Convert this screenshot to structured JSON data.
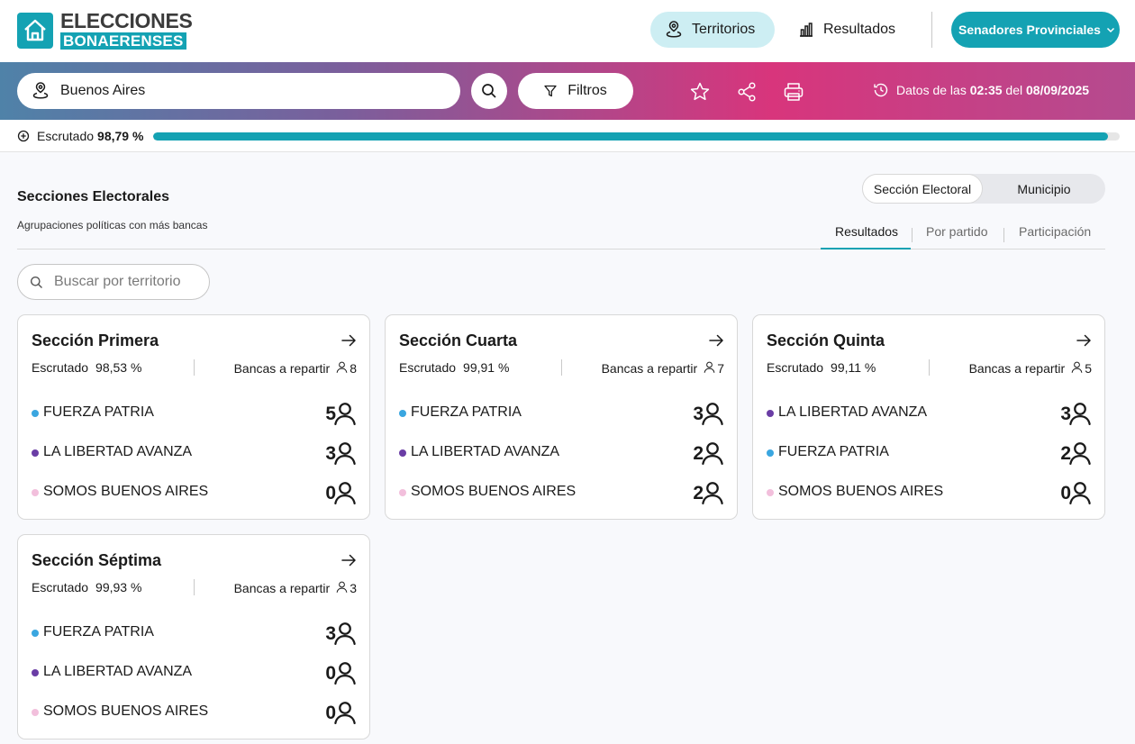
{
  "brand": {
    "line1": "ELECCIONES",
    "line2": "BONAERENSES",
    "color": "#14a2b3"
  },
  "nav": {
    "territorios": "Territorios",
    "resultados": "Resultados",
    "category": "Senadores Provinciales"
  },
  "toolbar": {
    "location": "Buenos Aires",
    "filtros": "Filtros",
    "datos_prefix": "Datos de las",
    "datos_time": "02:35",
    "datos_mid": "del",
    "datos_date": "08/09/2025"
  },
  "progress": {
    "label": "Escrutado",
    "value_text": "98,79 %",
    "fraction": 0.9879
  },
  "section": {
    "title": "Secciones Electorales",
    "subtitle": "Agrupaciones políticas con más bancas",
    "toggle": [
      "Sección Electoral",
      "Municipio"
    ],
    "tabs": [
      "Resultados",
      "Por partido",
      "Participación"
    ],
    "search_placeholder": "Buscar por territorio"
  },
  "party_colors": {
    "FUERZA PATRIA": "#3aa6e0",
    "LA LIBERTAD AVANZA": "#6a3da5",
    "SOMOS BUENOS AIRES": "#f2bfdc"
  },
  "cards": [
    {
      "title": "Sección Primera",
      "esc_label": "Escrutado",
      "esc_value": "98,53 %",
      "bancas_label": "Bancas a repartir",
      "bancas": "8",
      "parties": [
        {
          "name": "FUERZA PATRIA",
          "seats": "5"
        },
        {
          "name": "LA LIBERTAD AVANZA",
          "seats": "3"
        },
        {
          "name": "SOMOS BUENOS AIRES",
          "seats": "0"
        }
      ]
    },
    {
      "title": "Sección Cuarta",
      "esc_label": "Escrutado",
      "esc_value": "99,91 %",
      "bancas_label": "Bancas a repartir",
      "bancas": "7",
      "parties": [
        {
          "name": "FUERZA PATRIA",
          "seats": "3"
        },
        {
          "name": "LA LIBERTAD AVANZA",
          "seats": "2"
        },
        {
          "name": "SOMOS BUENOS AIRES",
          "seats": "2"
        }
      ]
    },
    {
      "title": "Sección Quinta",
      "esc_label": "Escrutado",
      "esc_value": "99,11 %",
      "bancas_label": "Bancas a repartir",
      "bancas": "5",
      "parties": [
        {
          "name": "LA LIBERTAD AVANZA",
          "seats": "3"
        },
        {
          "name": "FUERZA PATRIA",
          "seats": "2"
        },
        {
          "name": "SOMOS BUENOS AIRES",
          "seats": "0"
        }
      ]
    },
    {
      "title": "Sección Séptima",
      "esc_label": "Escrutado",
      "esc_value": "99,93 %",
      "bancas_label": "Bancas a repartir",
      "bancas": "3",
      "parties": [
        {
          "name": "FUERZA PATRIA",
          "seats": "3"
        },
        {
          "name": "LA LIBERTAD AVANZA",
          "seats": "0"
        },
        {
          "name": "SOMOS BUENOS AIRES",
          "seats": "0"
        }
      ]
    }
  ]
}
